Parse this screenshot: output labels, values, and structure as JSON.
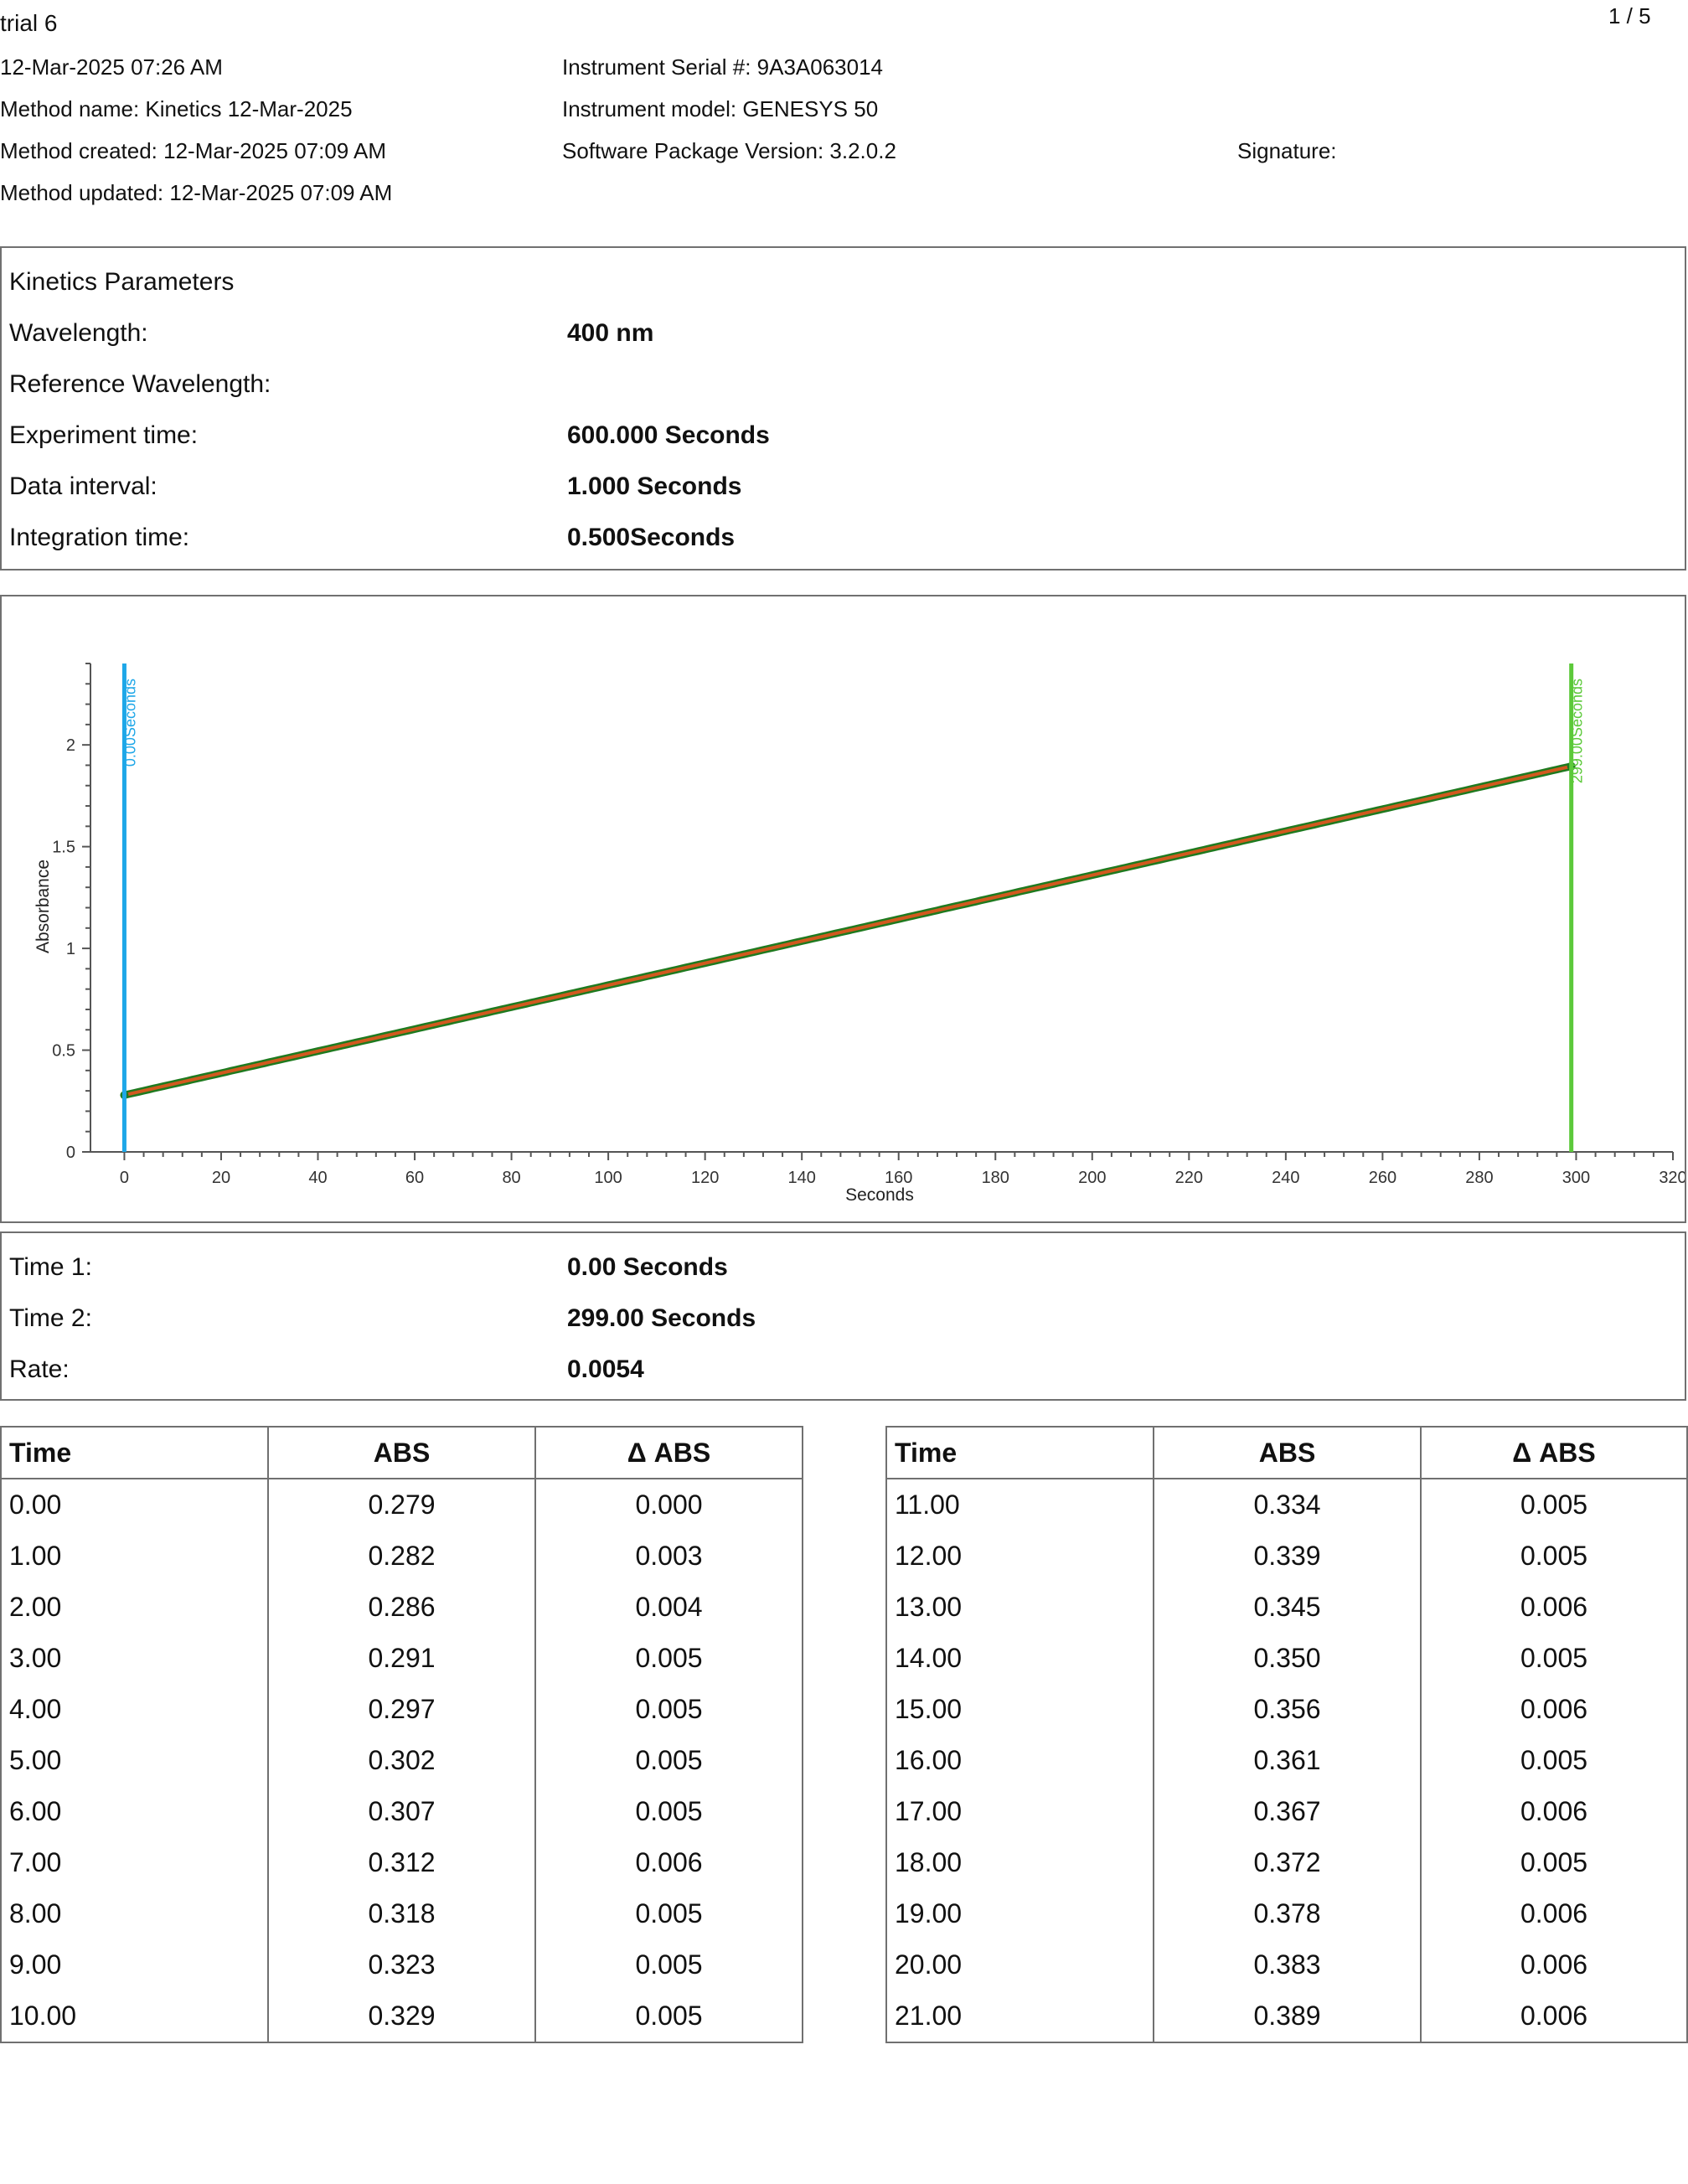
{
  "header": {
    "title": "trial 6",
    "page_indicator": "1 / 5",
    "datetime": "12-Mar-2025 07:26 AM",
    "method_name": "Method name: Kinetics 12-Mar-2025",
    "method_created": "Method created: 12-Mar-2025 07:09 AM",
    "method_updated": "Method updated: 12-Mar-2025 07:09 AM",
    "instrument_serial": "Instrument Serial #: 9A3A063014",
    "instrument_model": "Instrument model: GENESYS 50",
    "software_version": "Software Package Version: 3.2.0.2",
    "signature_label": "Signature:"
  },
  "kinetics": {
    "heading": "Kinetics Parameters",
    "params": [
      {
        "label": "Wavelength:",
        "value": "400 nm"
      },
      {
        "label": "Reference Wavelength:",
        "value": ""
      },
      {
        "label": "Experiment time:",
        "value": "600.000 Seconds"
      },
      {
        "label": "Data interval:",
        "value": "1.000 Seconds"
      },
      {
        "label": "Integration time:",
        "value": "0.500Seconds"
      }
    ]
  },
  "results": [
    {
      "label": "Time 1:",
      "value": "0.00 Seconds"
    },
    {
      "label": "Time 2:",
      "value": "299.00 Seconds"
    },
    {
      "label": "Rate:",
      "value": "0.0054"
    }
  ],
  "chart_data": {
    "type": "line",
    "xlabel": "Seconds",
    "ylabel": "Absorbance",
    "xlim": [
      -7,
      320
    ],
    "ylim": [
      0,
      2.4
    ],
    "x_ticks": [
      0,
      20,
      40,
      60,
      80,
      100,
      120,
      140,
      160,
      180,
      200,
      220,
      240,
      260,
      280,
      300,
      320
    ],
    "y_ticks": [
      0,
      0.5,
      1,
      1.5,
      2
    ],
    "y_tick_labels": [
      "0",
      "0.5",
      "1",
      "1.5",
      "2"
    ],
    "series": [
      {
        "role": "measured",
        "color": "#1f7a1f",
        "x_start": 0,
        "x_end": 299,
        "x_step": 1,
        "y_start": 0.279,
        "y_end": 1.895
      },
      {
        "role": "fit",
        "color": "#d2591e",
        "x": [
          0,
          299
        ],
        "y": [
          0.279,
          1.895
        ]
      }
    ],
    "markers": [
      {
        "x": 0,
        "label": "0.00Seconds",
        "color": "#1ea7e8"
      },
      {
        "x": 299,
        "label": "299.00Seconds",
        "color": "#5cc93a"
      }
    ],
    "grid": false,
    "legend": "none"
  },
  "table_left": {
    "headers": [
      "Time",
      "ABS",
      "Δ ABS"
    ],
    "rows": [
      [
        "0.00",
        "0.279",
        "0.000"
      ],
      [
        "1.00",
        "0.282",
        "0.003"
      ],
      [
        "2.00",
        "0.286",
        "0.004"
      ],
      [
        "3.00",
        "0.291",
        "0.005"
      ],
      [
        "4.00",
        "0.297",
        "0.005"
      ],
      [
        "5.00",
        "0.302",
        "0.005"
      ],
      [
        "6.00",
        "0.307",
        "0.005"
      ],
      [
        "7.00",
        "0.312",
        "0.006"
      ],
      [
        "8.00",
        "0.318",
        "0.005"
      ],
      [
        "9.00",
        "0.323",
        "0.005"
      ],
      [
        "10.00",
        "0.329",
        "0.005"
      ]
    ]
  },
  "table_right": {
    "headers": [
      "Time",
      "ABS",
      "Δ ABS"
    ],
    "rows": [
      [
        "11.00",
        "0.334",
        "0.005"
      ],
      [
        "12.00",
        "0.339",
        "0.005"
      ],
      [
        "13.00",
        "0.345",
        "0.006"
      ],
      [
        "14.00",
        "0.350",
        "0.005"
      ],
      [
        "15.00",
        "0.356",
        "0.006"
      ],
      [
        "16.00",
        "0.361",
        "0.005"
      ],
      [
        "17.00",
        "0.367",
        "0.006"
      ],
      [
        "18.00",
        "0.372",
        "0.005"
      ],
      [
        "19.00",
        "0.378",
        "0.006"
      ],
      [
        "20.00",
        "0.383",
        "0.006"
      ],
      [
        "21.00",
        "0.389",
        "0.006"
      ]
    ]
  }
}
